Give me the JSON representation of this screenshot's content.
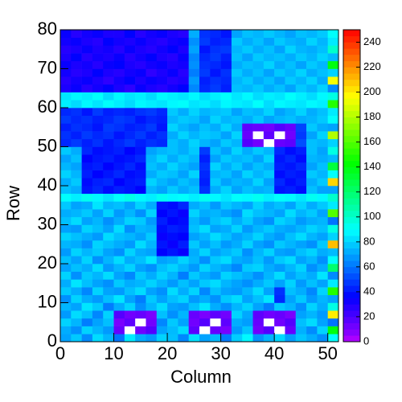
{
  "chart_data": {
    "type": "heatmap",
    "x_label": "Column",
    "y_label": "Row",
    "xlim": [
      0,
      52
    ],
    "ylim": [
      0,
      80
    ],
    "xticks": [
      0,
      10,
      20,
      30,
      40,
      50
    ],
    "yticks": [
      0,
      10,
      20,
      30,
      40,
      50,
      60,
      70,
      80
    ],
    "zlim": [
      0,
      250
    ],
    "zticks": [
      0,
      20,
      40,
      60,
      80,
      100,
      120,
      140,
      160,
      180,
      200,
      220,
      240
    ],
    "z": [
      [
        70,
        78,
        65,
        82,
        74,
        60,
        85,
        72,
        68,
        80,
        76,
        64,
        83,
        70,
        75,
        62,
        79,
        88,
        67,
        74,
        81,
        69,
        77,
        72,
        66,
        90
      ],
      [
        72,
        66,
        80,
        74,
        68,
        14,
        0,
        12,
        18,
        70,
        75,
        82,
        16,
        0,
        14,
        10,
        68,
        77,
        12,
        18,
        0,
        14,
        73,
        65,
        80,
        140
      ],
      [
        80,
        74,
        62,
        70,
        76,
        10,
        16,
        0,
        12,
        64,
        78,
        70,
        12,
        18,
        0,
        16,
        72,
        69,
        14,
        0,
        12,
        18,
        76,
        82,
        70,
        60
      ],
      [
        68,
        82,
        76,
        64,
        80,
        18,
        12,
        14,
        10,
        76,
        66,
        74,
        14,
        10,
        16,
        12,
        80,
        71,
        16,
        12,
        14,
        10,
        70,
        74,
        68,
        200
      ],
      [
        74,
        70,
        84,
        78,
        62,
        72,
        80,
        66,
        74,
        82,
        70,
        68,
        76,
        84,
        72,
        66,
        74,
        80,
        70,
        62,
        78,
        74,
        66,
        80,
        72,
        95
      ],
      [
        66,
        80,
        72,
        68,
        76,
        84,
        70,
        62,
        78,
        70,
        76,
        80,
        68,
        72,
        66,
        78,
        82,
        70,
        76,
        84,
        44,
        70,
        78,
        68,
        74,
        70
      ],
      [
        78,
        72,
        64,
        80,
        70,
        68,
        76,
        82,
        70,
        66,
        82,
        72,
        80,
        64,
        76,
        70,
        68,
        74,
        82,
        70,
        46,
        76,
        72,
        64,
        80,
        150
      ],
      [
        72,
        84,
        76,
        70,
        66,
        78,
        72,
        74,
        80,
        74,
        68,
        76,
        70,
        78,
        82,
        74,
        70,
        66,
        72,
        78,
        70,
        80,
        68,
        76,
        70,
        85
      ],
      [
        80,
        66,
        78,
        74,
        82,
        70,
        64,
        78,
        72,
        80,
        74,
        62,
        78,
        72,
        68,
        80,
        76,
        72,
        66,
        74,
        82,
        70,
        76,
        72,
        84,
        65
      ],
      [
        70,
        76,
        72,
        82,
        68,
        74,
        80,
        70,
        66,
        76,
        80,
        74,
        68,
        80,
        74,
        70,
        64,
        78,
        80,
        72,
        68,
        74,
        80,
        66,
        72,
        120
      ],
      [
        76,
        70,
        80,
        66,
        74,
        82,
        72,
        76,
        84,
        70,
        72,
        80,
        74,
        66,
        78,
        82,
        72,
        70,
        76,
        68,
        78,
        82,
        70,
        74,
        66,
        90
      ],
      [
        68,
        80,
        74,
        78,
        70,
        66,
        80,
        72,
        70,
        36,
        40,
        34,
        72,
        80,
        70,
        74,
        78,
        66,
        74,
        80,
        70,
        68,
        76,
        80,
        72,
        75
      ],
      [
        74,
        72,
        66,
        80,
        76,
        72,
        68,
        82,
        74,
        40,
        34,
        42,
        78,
        70,
        76,
        68,
        72,
        80,
        70,
        66,
        78,
        74,
        70,
        66,
        78,
        210
      ],
      [
        80,
        76,
        72,
        68,
        82,
        76,
        74,
        70,
        78,
        34,
        38,
        36,
        70,
        74,
        82,
        76,
        70,
        74,
        80,
        72,
        68,
        76,
        82,
        74,
        70,
        80
      ],
      [
        70,
        68,
        80,
        76,
        70,
        82,
        66,
        74,
        72,
        38,
        42,
        40,
        76,
        82,
        70,
        72,
        80,
        68,
        74,
        78,
        72,
        70,
        74,
        80,
        76,
        95
      ],
      [
        76,
        82,
        70,
        74,
        66,
        72,
        80,
        78,
        68,
        42,
        36,
        38,
        74,
        68,
        76,
        80,
        72,
        78,
        70,
        66,
        80,
        76,
        68,
        72,
        74,
        60
      ],
      [
        72,
        74,
        78,
        70,
        80,
        68,
        74,
        66,
        80,
        36,
        40,
        34,
        80,
        72,
        74,
        70,
        66,
        82,
        76,
        74,
        70,
        82,
        74,
        78,
        70,
        160
      ],
      [
        78,
        70,
        72,
        84,
        74,
        76,
        70,
        80,
        72,
        40,
        38,
        44,
        72,
        76,
        68,
        78,
        74,
        70,
        80,
        72,
        76,
        70,
        80,
        72,
        78,
        85
      ],
      [
        90,
        86,
        92,
        88,
        84,
        90,
        94,
        88,
        86,
        92,
        88,
        90,
        86,
        92,
        88,
        84,
        90,
        88,
        92,
        86,
        90,
        88,
        84,
        92,
        88,
        100
      ],
      [
        76,
        72,
        40,
        44,
        38,
        42,
        40,
        36,
        74,
        70,
        78,
        72,
        76,
        46,
        72,
        80,
        70,
        76,
        72,
        74,
        40,
        42,
        38,
        76,
        70,
        70
      ],
      [
        72,
        78,
        38,
        42,
        44,
        36,
        40,
        42,
        80,
        74,
        70,
        76,
        72,
        42,
        78,
        70,
        74,
        72,
        80,
        70,
        44,
        38,
        42,
        72,
        78,
        205
      ],
      [
        80,
        74,
        42,
        36,
        40,
        44,
        38,
        40,
        72,
        78,
        76,
        70,
        80,
        44,
        74,
        76,
        70,
        80,
        74,
        78,
        38,
        42,
        40,
        78,
        74,
        90
      ],
      [
        74,
        70,
        40,
        42,
        36,
        40,
        44,
        38,
        76,
        72,
        80,
        74,
        70,
        46,
        80,
        72,
        78,
        70,
        76,
        72,
        42,
        40,
        44,
        70,
        76,
        130
      ],
      [
        70,
        76,
        36,
        40,
        42,
        38,
        40,
        44,
        74,
        80,
        72,
        78,
        74,
        42,
        70,
        78,
        74,
        76,
        70,
        80,
        40,
        44,
        38,
        74,
        72,
        75
      ],
      [
        78,
        72,
        44,
        38,
        40,
        42,
        36,
        40,
        70,
        74,
        76,
        72,
        78,
        48,
        76,
        70,
        80,
        72,
        78,
        74,
        44,
        38,
        42,
        76,
        70,
        95
      ],
      [
        44,
        48,
        42,
        46,
        40,
        44,
        48,
        42,
        46,
        44,
        76,
        72,
        80,
        74,
        70,
        78,
        74,
        18,
        12,
        0,
        14,
        16,
        52,
        76,
        74,
        80
      ],
      [
        46,
        42,
        48,
        44,
        46,
        40,
        44,
        48,
        42,
        46,
        72,
        80,
        74,
        78,
        76,
        70,
        80,
        14,
        0,
        16,
        0,
        12,
        48,
        70,
        80,
        180
      ],
      [
        42,
        46,
        44,
        40,
        48,
        46,
        42,
        44,
        48,
        40,
        80,
        74,
        70,
        76,
        72,
        80,
        72,
        16,
        14,
        12,
        18,
        14,
        50,
        78,
        72,
        70
      ],
      [
        48,
        44,
        46,
        42,
        44,
        48,
        46,
        40,
        44,
        42,
        74,
        78,
        76,
        70,
        80,
        74,
        76,
        72,
        78,
        70,
        74,
        76,
        72,
        74,
        78,
        90
      ],
      [
        44,
        46,
        40,
        48,
        42,
        44,
        42,
        46,
        48,
        44,
        78,
        72,
        80,
        74,
        76,
        78,
        70,
        76,
        74,
        80,
        70,
        74,
        80,
        72,
        76,
        85
      ],
      [
        86,
        82,
        88,
        84,
        90,
        86,
        82,
        88,
        86,
        84,
        88,
        90,
        84,
        86,
        82,
        88,
        86,
        84,
        90,
        82,
        88,
        86,
        84,
        88,
        86,
        150
      ],
      [
        84,
        88,
        86,
        90,
        82,
        88,
        84,
        86,
        82,
        88,
        86,
        84,
        88,
        82,
        86,
        90,
        84,
        88,
        82,
        86,
        84,
        90,
        86,
        82,
        88,
        95
      ],
      [
        30,
        34,
        28,
        32,
        36,
        30,
        26,
        34,
        30,
        28,
        32,
        36,
        64,
        44,
        48,
        42,
        76,
        74,
        78,
        72,
        76,
        70,
        78,
        74,
        80,
        65
      ],
      [
        28,
        32,
        34,
        30,
        26,
        32,
        36,
        30,
        34,
        32,
        28,
        30,
        68,
        42,
        46,
        44,
        74,
        78,
        72,
        76,
        70,
        78,
        74,
        80,
        72,
        195
      ],
      [
        32,
        28,
        30,
        36,
        30,
        28,
        32,
        34,
        26,
        30,
        34,
        28,
        62,
        48,
        40,
        46,
        78,
        72,
        76,
        70,
        78,
        74,
        80,
        72,
        76,
        80
      ],
      [
        34,
        30,
        32,
        28,
        34,
        36,
        30,
        28,
        32,
        34,
        30,
        32,
        66,
        46,
        44,
        40,
        72,
        76,
        74,
        80,
        72,
        76,
        70,
        78,
        74,
        140
      ],
      [
        30,
        36,
        28,
        32,
        30,
        34,
        28,
        32,
        36,
        30,
        28,
        34,
        64,
        44,
        48,
        42,
        76,
        70,
        78,
        74,
        76,
        72,
        78,
        74,
        80,
        75
      ],
      [
        28,
        30,
        34,
        30,
        32,
        28,
        34,
        30,
        28,
        32,
        36,
        30,
        70,
        40,
        46,
        48,
        74,
        78,
        72,
        76,
        70,
        80,
        74,
        72,
        76,
        100
      ],
      [
        32,
        34,
        30,
        28,
        36,
        32,
        30,
        34,
        30,
        28,
        32,
        34,
        66,
        48,
        42,
        44,
        78,
        72,
        76,
        70,
        78,
        74,
        72,
        80,
        74,
        85
      ],
      [
        34,
        28,
        32,
        34,
        30,
        30,
        36,
        28,
        32,
        34,
        30,
        28,
        72,
        46,
        44,
        40,
        70,
        76,
        74,
        78,
        74,
        70,
        76,
        74,
        78,
        90
      ]
    ]
  }
}
